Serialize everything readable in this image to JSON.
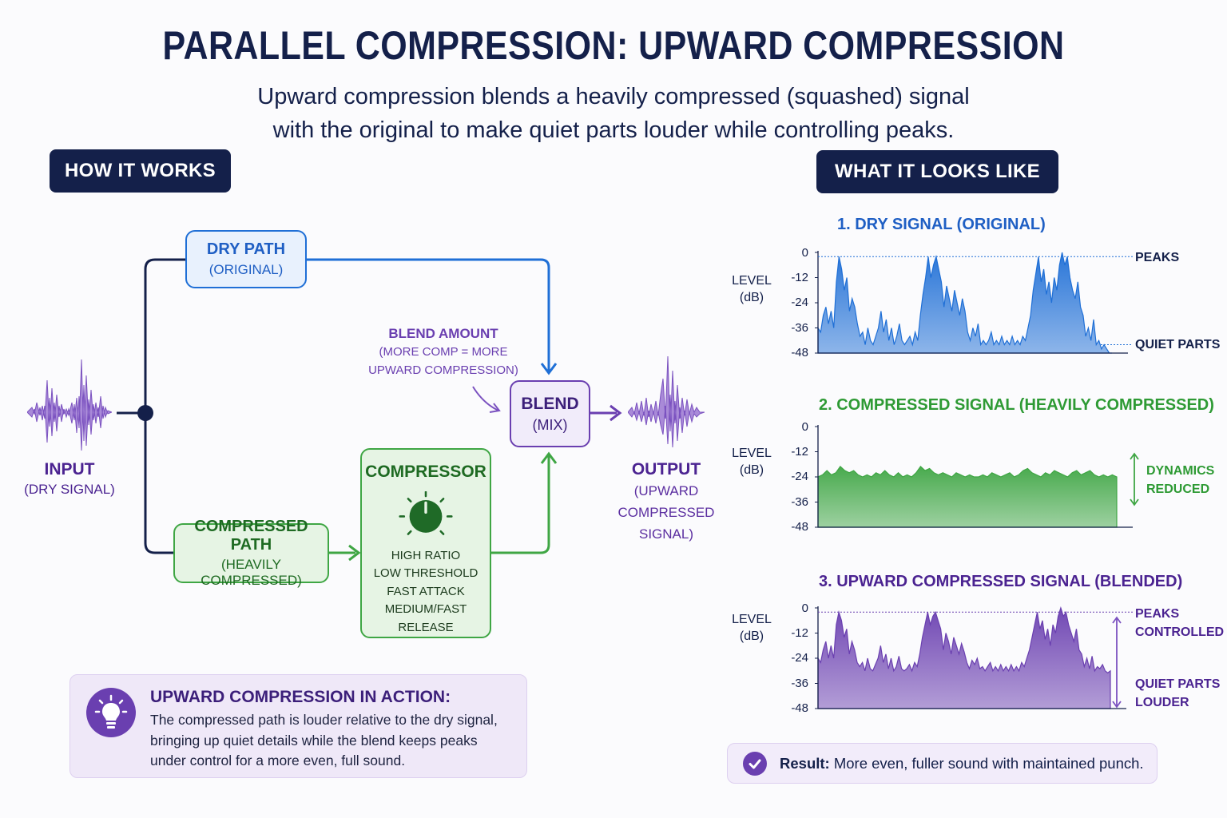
{
  "header": {
    "title": "PARALLEL COMPRESSION: UPWARD COMPRESSION",
    "subtitle_line1": "Upward compression blends a heavily compressed (squashed) signal",
    "subtitle_line2": "with the original to make quiet parts louder while controlling peaks."
  },
  "sections": {
    "how_it_works": "HOW IT WORKS",
    "what_it_looks_like": "WHAT IT LOOKS LIKE"
  },
  "colors": {
    "navy": "#14204a",
    "dry_blue": "#1f6fd6",
    "compressed_green": "#3fa644",
    "blend_purple": "#6a3fb0"
  },
  "diagram": {
    "input": {
      "label": "INPUT",
      "sublabel": "(DRY SIGNAL)"
    },
    "dry_path": {
      "label": "DRY PATH",
      "sublabel": "(ORIGINAL)"
    },
    "compressed_path": {
      "label": "COMPRESSED PATH",
      "sublabel": "(HEAVILY COMPRESSED)"
    },
    "compressor": {
      "label": "COMPRESSOR",
      "settings": [
        "HIGH RATIO",
        "LOW THRESHOLD",
        "FAST ATTACK",
        "MEDIUM/FAST RELEASE"
      ]
    },
    "blend": {
      "label": "BLEND",
      "sublabel": "(MIX)"
    },
    "blend_amount": {
      "label": "BLEND AMOUNT",
      "line2": "(MORE COMP = MORE",
      "line3": "UPWARD COMPRESSION)"
    },
    "output": {
      "label": "OUTPUT",
      "line2": "(UPWARD",
      "line3": "COMPRESSED",
      "line4": "SIGNAL)"
    }
  },
  "action_card": {
    "title": "UPWARD COMPRESSION IN ACTION:",
    "line1": "The compressed path is louder relative to the dry signal,",
    "line2": "bringing up quiet details while the blend keeps peaks",
    "line3": "under control for a more even, full sound."
  },
  "result": {
    "label": "Result:",
    "text": " More even, fuller sound with maintained punch."
  },
  "chart_data": [
    {
      "type": "area",
      "title": "1. DRY SIGNAL (ORIGINAL)",
      "ylabel": "LEVEL (dB)",
      "yticks": [
        "0",
        "-12",
        "-24",
        "-36",
        "-48"
      ],
      "ylim": [
        -48,
        0
      ],
      "annotations": [
        "PEAKS",
        "QUIET PARTS"
      ],
      "peak_line_db": -2,
      "quiet_line_db": -44,
      "values": [
        -36,
        -38,
        -30,
        -26,
        -34,
        -28,
        -36,
        -14,
        -2,
        -8,
        -18,
        -12,
        -28,
        -22,
        -26,
        -34,
        -40,
        -38,
        -44,
        -36,
        -42,
        -44,
        -40,
        -36,
        -28,
        -38,
        -32,
        -42,
        -36,
        -44,
        -40,
        -34,
        -42,
        -44,
        -42,
        -40,
        -44,
        -38,
        -42,
        -30,
        -20,
        -12,
        -2,
        -12,
        -6,
        -2,
        -8,
        -14,
        -26,
        -16,
        -22,
        -28,
        -18,
        -24,
        -30,
        -22,
        -28,
        -38,
        -42,
        -36,
        -40,
        -34,
        -44,
        -42,
        -44,
        -42,
        -38,
        -44,
        -42,
        -44,
        -40,
        -44,
        -42,
        -44,
        -40,
        -44,
        -42,
        -44,
        -40,
        -42,
        -36,
        -30,
        -18,
        -10,
        -2,
        -14,
        -8,
        -20,
        -14,
        -24,
        -12,
        -18,
        -6,
        0,
        -6,
        -2,
        -12,
        -18,
        -22,
        -14,
        -26,
        -30,
        -40,
        -36,
        -42,
        -32,
        -44,
        -42,
        -46,
        -44,
        -46,
        -48,
        -48
      ],
      "color": "#1f6fd6"
    },
    {
      "type": "area",
      "title": "2. COMPRESSED SIGNAL (HEAVILY COMPRESSED)",
      "ylabel": "LEVEL (dB)",
      "yticks": [
        "0",
        "-12",
        "-24",
        "-36",
        "-48"
      ],
      "ylim": [
        -48,
        0
      ],
      "annotations": [
        "DYNAMICS",
        "REDUCED"
      ],
      "values": [
        -24,
        -23,
        -21,
        -23,
        -22,
        -19,
        -21,
        -22,
        -21,
        -23,
        -24,
        -23,
        -24,
        -22,
        -23,
        -21,
        -23,
        -24,
        -22,
        -24,
        -23,
        -24,
        -22,
        -19,
        -21,
        -20,
        -22,
        -23,
        -22,
        -23,
        -24,
        -22,
        -23,
        -24,
        -23,
        -24,
        -24,
        -23,
        -24,
        -22,
        -23,
        -24,
        -23,
        -22,
        -24,
        -23,
        -21,
        -20,
        -22,
        -23,
        -24,
        -22,
        -23,
        -21,
        -22,
        -23,
        -24,
        -22,
        -21,
        -23,
        -22,
        -21,
        -23,
        -24,
        -23,
        -24,
        -23,
        -24
      ],
      "color": "#3fa644"
    },
    {
      "type": "area",
      "title": "3. UPWARD COMPRESSED SIGNAL (BLENDED)",
      "ylabel": "LEVEL (dB)",
      "yticks": [
        "0",
        "-12",
        "-24",
        "-36",
        "-48"
      ],
      "ylim": [
        -48,
        0
      ],
      "annotations": [
        "PEAKS",
        "CONTROLLED",
        "QUIET PARTS",
        "LOUDER"
      ],
      "peak_line_db": -2,
      "values": [
        -24,
        -26,
        -20,
        -16,
        -24,
        -18,
        -24,
        -8,
        -2,
        -6,
        -14,
        -10,
        -22,
        -16,
        -20,
        -26,
        -28,
        -26,
        -30,
        -24,
        -29,
        -30,
        -27,
        -24,
        -18,
        -26,
        -22,
        -29,
        -24,
        -30,
        -28,
        -23,
        -29,
        -30,
        -29,
        -27,
        -30,
        -26,
        -28,
        -22,
        -14,
        -8,
        -2,
        -8,
        -4,
        -2,
        -6,
        -10,
        -20,
        -12,
        -16,
        -22,
        -14,
        -18,
        -22,
        -17,
        -21,
        -26,
        -29,
        -25,
        -27,
        -24,
        -29,
        -28,
        -30,
        -28,
        -26,
        -30,
        -28,
        -30,
        -27,
        -30,
        -28,
        -30,
        -27,
        -30,
        -28,
        -30,
        -26,
        -28,
        -24,
        -20,
        -14,
        -8,
        -2,
        -10,
        -6,
        -15,
        -10,
        -18,
        -8,
        -12,
        -4,
        0,
        -4,
        -2,
        -8,
        -12,
        -16,
        -10,
        -20,
        -22,
        -28,
        -24,
        -29,
        -23,
        -30,
        -28,
        -29,
        -27,
        -30,
        -31,
        -30
      ],
      "color": "#6a3fb0"
    }
  ]
}
